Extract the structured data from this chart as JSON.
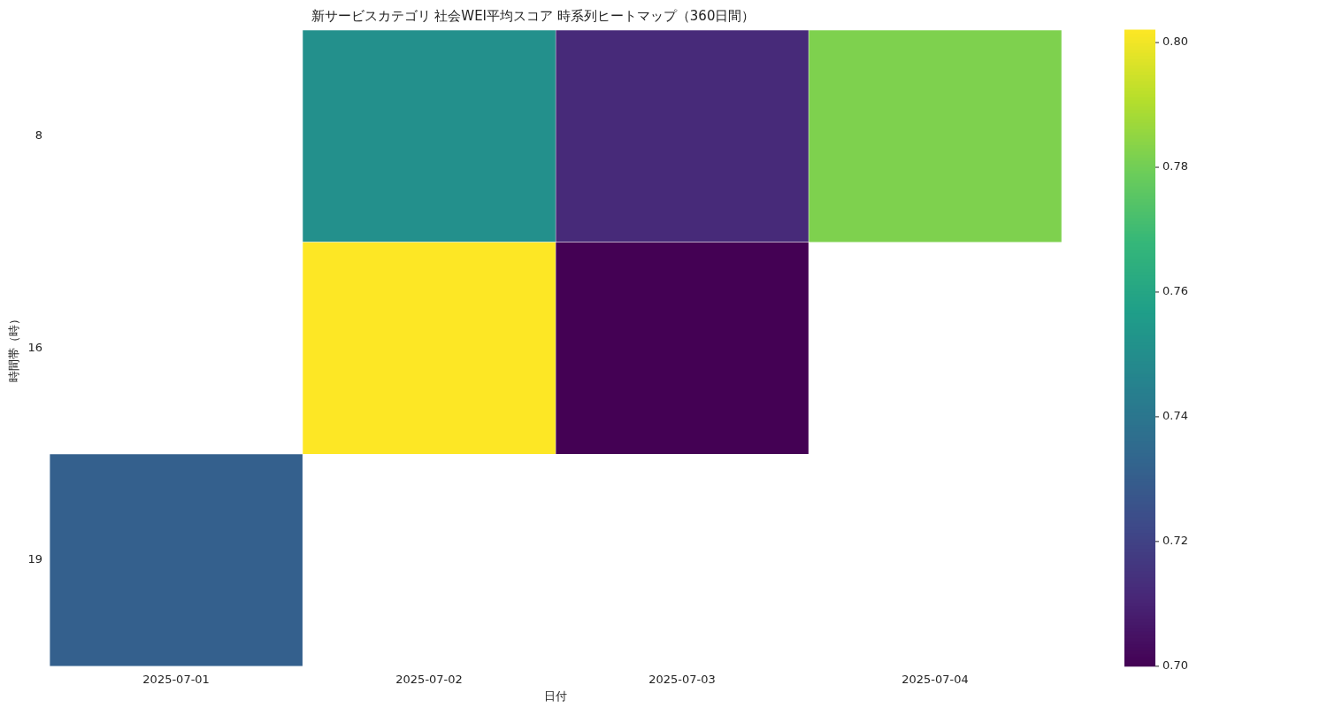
{
  "chart_data": {
    "type": "heatmap",
    "title": "新サービスカテゴリ 社会WEI平均スコア 時系列ヒートマップ（360日間）",
    "xlabel": "日付",
    "ylabel": "時間帯（時）",
    "categories": [
      "2025-07-01",
      "2025-07-02",
      "2025-07-03",
      "2025-07-04"
    ],
    "y_categories": [
      "8",
      "16",
      "19"
    ],
    "cells": [
      [
        null,
        0.751,
        0.712,
        0.782
      ],
      [
        null,
        0.802,
        0.7,
        null
      ],
      [
        0.731,
        null,
        null,
        null
      ]
    ],
    "clim": [
      0.7,
      0.802
    ],
    "cticks": [
      {
        "value": 0.7,
        "label": "0.70"
      },
      {
        "value": 0.72,
        "label": "0.72"
      },
      {
        "value": 0.74,
        "label": "0.74"
      },
      {
        "value": 0.76,
        "label": "0.76"
      },
      {
        "value": 0.78,
        "label": "0.78"
      },
      {
        "value": 0.8,
        "label": "0.80"
      }
    ]
  }
}
